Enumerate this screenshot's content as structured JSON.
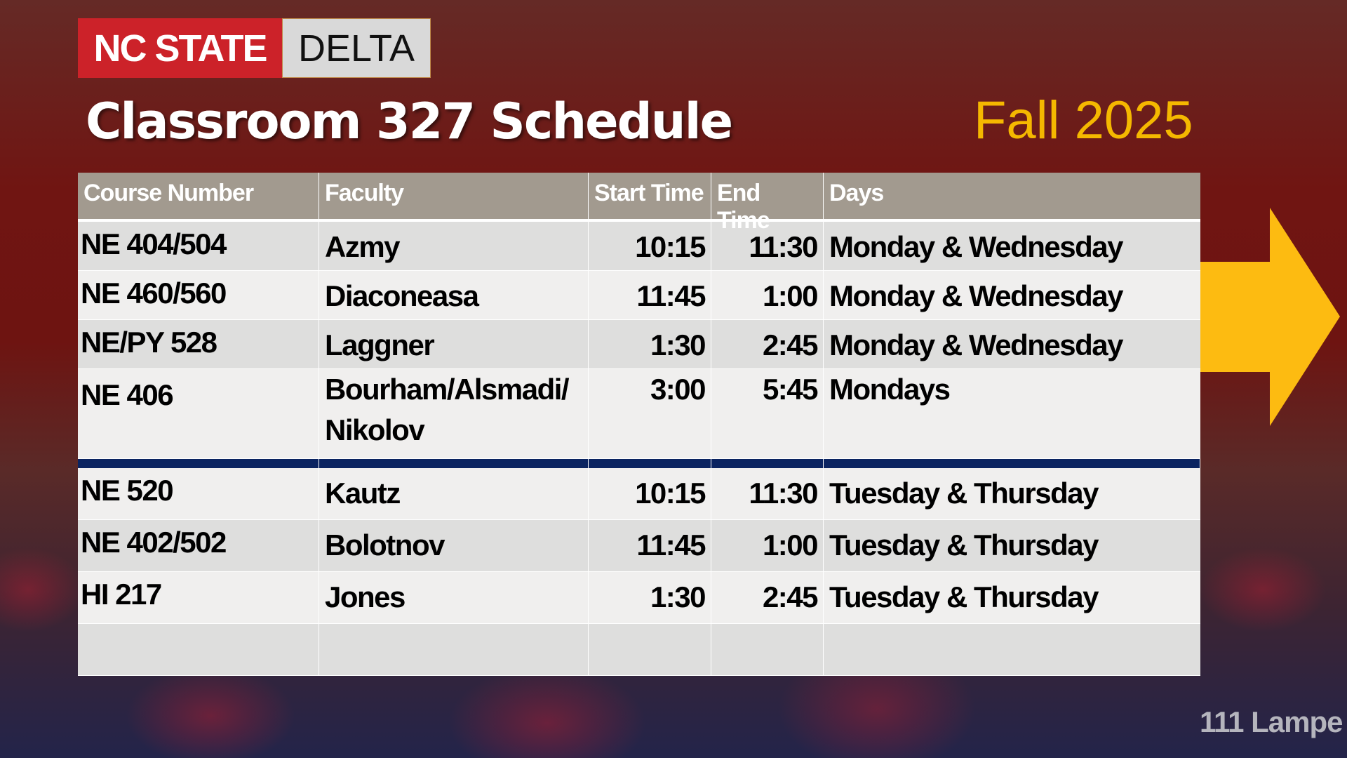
{
  "logo": {
    "primary": "NC STATE",
    "secondary": "DELTA"
  },
  "title": "Classroom 327 Schedule",
  "term": "Fall 2025",
  "table": {
    "headers": [
      "Course Number",
      "Faculty",
      "Start Time",
      "End Time",
      "Days"
    ],
    "rows": [
      [
        "NE 404/504",
        "Azmy",
        "10:15",
        "11:30",
        "Monday & Wednesday"
      ],
      [
        "NE 460/560",
        "Diaconeasa",
        "11:45",
        "1:00",
        "Monday & Wednesday"
      ],
      [
        "NE/PY 528",
        "Laggner",
        "1:30",
        "2:45",
        "Monday & Wednesday"
      ],
      [
        "NE 406",
        "Bourham/Alsmadi/ Nikolov",
        "3:00",
        "5:45",
        "Mondays"
      ],
      [
        "NE 520",
        "Kautz",
        "10:15",
        "11:30",
        "Tuesday & Thursday"
      ],
      [
        "NE 402/502",
        "Bolotnov",
        "11:45",
        "1:00",
        "Tuesday & Thursday"
      ],
      [
        "HI 217",
        "Jones",
        "1:30",
        "2:45",
        "Tuesday & Thursday"
      ],
      [
        "",
        "",
        "",
        "",
        ""
      ]
    ]
  },
  "footer": "111 Lampe",
  "colors": {
    "brand_red": "#cc2229",
    "accent_gold": "#f5b800",
    "header_gray": "#a29a8f",
    "divider_navy": "#0b2461"
  },
  "icons": {
    "arrow": "arrow-right-icon"
  }
}
